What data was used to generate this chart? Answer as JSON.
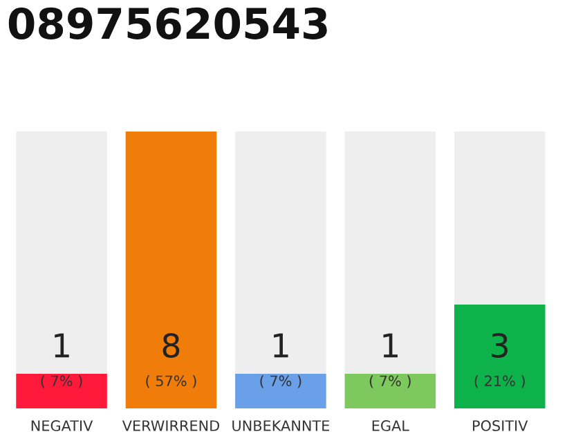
{
  "chart_data": {
    "type": "bar",
    "title": "08975620543",
    "categories": [
      "NEGATIV",
      "VERWIRREND",
      "UNBEKANNTE",
      "EGAL",
      "POSITIV"
    ],
    "values": [
      1,
      8,
      1,
      1,
      3
    ],
    "colors": [
      "#ff1a3c",
      "#f07d0a",
      "#6aa0e8",
      "#7dc95e",
      "#0db34a"
    ],
    "data_labels": true,
    "annotations": [
      "( 7% )",
      "( 57% )",
      "( 7% )",
      "( 7% )",
      "( 21% )"
    ],
    "grid": false,
    "legend": false,
    "tick_labels": "x"
  }
}
